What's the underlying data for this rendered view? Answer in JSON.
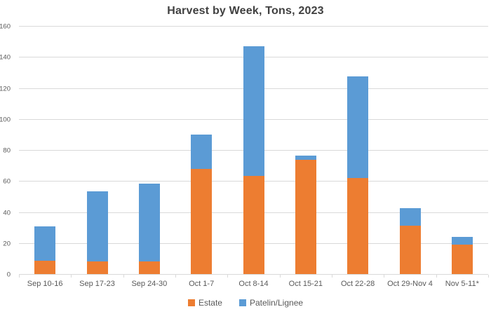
{
  "title": "Harvest by Week, Tons, 2023",
  "chart_data": {
    "type": "bar",
    "stacked": true,
    "title": "Harvest by Week, Tons, 2023",
    "categories": [
      "Sep 10-16",
      "Sep 17-23",
      "Sep 24-30",
      "Oct 1-7",
      "Oct 8-14",
      "Oct 15-21",
      "Oct 22-28",
      "Oct 29-Nov 4",
      "Nov 5-11*"
    ],
    "series": [
      {
        "name": "Estate",
        "color": "#ED7D31",
        "values": [
          8.5,
          8,
          8,
          68,
          63.5,
          74,
          62,
          31.5,
          19
        ]
      },
      {
        "name": "Patelin/Lignee",
        "color": "#5B9BD5",
        "values": [
          22.5,
          45.5,
          50.5,
          22,
          84,
          2.5,
          66,
          11,
          5
        ]
      }
    ],
    "stack_totals": [
      31,
      53.5,
      58.5,
      90,
      147.5,
      76.5,
      128,
      42.5,
      24
    ],
    "xlabel": "",
    "ylabel": "",
    "ylim": [
      0,
      160
    ],
    "yticks": [
      0,
      20,
      40,
      60,
      80,
      100,
      120,
      140,
      160
    ],
    "grid": true,
    "legend_position": "bottom"
  },
  "style": {
    "estate_color": "#ED7D31",
    "patelin_lignee_color": "#5B9BD5",
    "gridline_color": "#D9D9D9",
    "axis_text_color": "#595959",
    "title_color": "#404040",
    "background_color": "#FFFFFF"
  }
}
